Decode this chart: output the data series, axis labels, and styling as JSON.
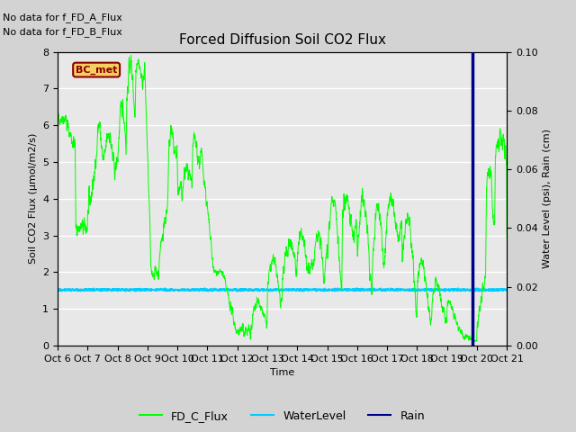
{
  "title": "Forced Diffusion Soil CO2 Flux",
  "xlabel": "Time",
  "ylabel_left": "Soil CO2 Flux (μmol/m2/s)",
  "ylabel_right": "Water Level (psi), Rain (cm)",
  "text_no_data_1": "No data for f_FD_A_Flux",
  "text_no_data_2": "No data for f_FD_B_Flux",
  "bc_met_label": "BC_met",
  "ylim_left": [
    0.0,
    8.0
  ],
  "ylim_right": [
    0.0,
    0.1
  ],
  "yticks_left": [
    0.0,
    1.0,
    2.0,
    3.0,
    4.0,
    5.0,
    6.0,
    7.0,
    8.0
  ],
  "yticks_right": [
    0.0,
    0.02,
    0.04,
    0.06,
    0.08,
    0.1
  ],
  "xtick_labels": [
    "Oct 6",
    "Oct 7",
    "Oct 8",
    "Oct 9",
    "Oct 10",
    "Oct 11",
    "Oct 12",
    "Oct 13",
    "Oct 14",
    "Oct 15",
    "Oct 16",
    "Oct 17",
    "Oct 18",
    "Oct 19",
    "Oct 20",
    "Oct 21"
  ],
  "background_color": "#d3d3d3",
  "plot_bg_color": "#e8e8e8",
  "grid_color": "#ffffff",
  "flux_color": "#00ff00",
  "water_color": "#00ccff",
  "rain_color": "#00008b",
  "vertical_line_x": 13.85,
  "water_level_value": 1.52,
  "legend_items": [
    "FD_C_Flux",
    "WaterLevel",
    "Rain"
  ],
  "title_fontsize": 11,
  "label_fontsize": 8,
  "tick_fontsize": 8
}
